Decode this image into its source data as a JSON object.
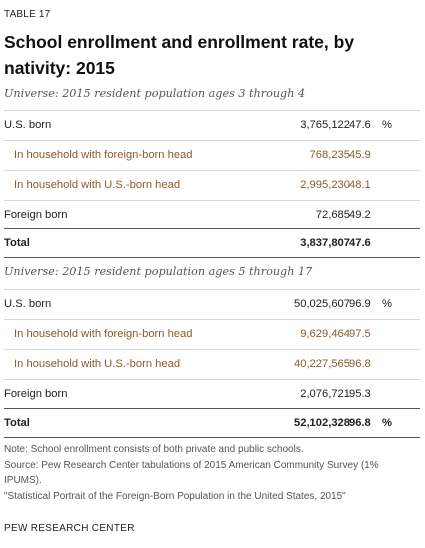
{
  "table_label": "TABLE 17",
  "title": "School enrollment and enrollment rate, by nativity: 2015",
  "section1": {
    "universe": "Universe: 2015 resident population ages 3 through 4",
    "rows": [
      {
        "label": "U.S. born",
        "count": "3,765,122",
        "rate": "47.6",
        "pct": "%"
      },
      {
        "label": "In household with foreign-born head",
        "count": "768,235",
        "rate": "45.9",
        "pct": ""
      },
      {
        "label": "In household with U.S.-born head",
        "count": "2,995,230",
        "rate": "48.1",
        "pct": ""
      },
      {
        "label": "Foreign born",
        "count": "72,685",
        "rate": "49.2",
        "pct": ""
      }
    ],
    "total": {
      "label": "Total",
      "count": "3,837,807",
      "rate": "47.6",
      "pct": ""
    }
  },
  "section2": {
    "universe": "Universe: 2015 resident population ages 5 through 17",
    "rows": [
      {
        "label": "U.S. born",
        "count": "50,025,607",
        "rate": "96.9",
        "pct": "%"
      },
      {
        "label": "In household with foreign-born head",
        "count": "9,629,464",
        "rate": "97.5",
        "pct": ""
      },
      {
        "label": "In household with U.S.-born head",
        "count": "40,227,565",
        "rate": "96.8",
        "pct": ""
      },
      {
        "label": "Foreign born",
        "count": "2,076,721",
        "rate": "95.3",
        "pct": ""
      }
    ],
    "total": {
      "label": "Total",
      "count": "52,102,328",
      "rate": "96.8",
      "pct": "%"
    }
  },
  "notes": {
    "note": "Note: School enrollment consists of both private and public schools.",
    "source": "Source: Pew Research Center tabulations of 2015 American Community Survey (1% IPUMS).",
    "report": "\"Statistical Portrait of the Foreign-Born Population in the United States, 2015\""
  },
  "footer": "PEW RESEARCH CENTER",
  "colors": {
    "subrow_text": "#8a5a2b",
    "rule_light": "#d6d6d6",
    "rule_dark": "#555555"
  }
}
